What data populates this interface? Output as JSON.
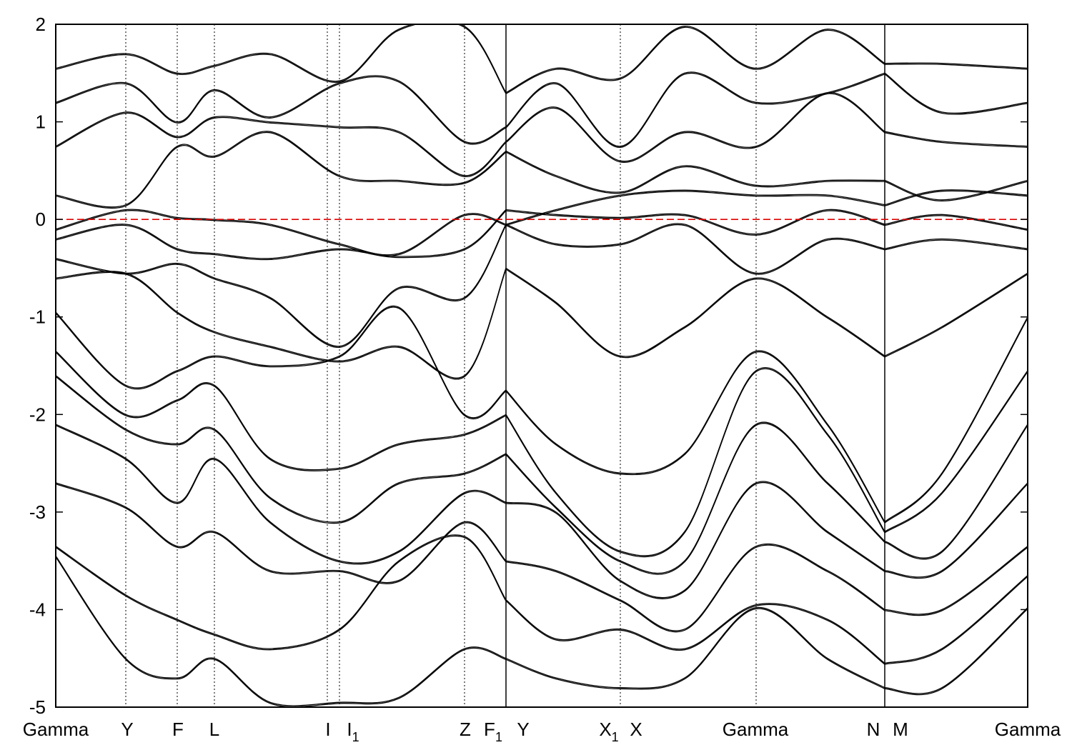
{
  "chart_data": {
    "type": "line",
    "title": "",
    "xlabel": "",
    "ylabel": "",
    "ylim": [
      -5,
      2
    ],
    "y_ticks": [
      -5,
      -4,
      -3,
      -2,
      -1,
      0,
      1,
      2
    ],
    "y_tick_labels": [
      "-5",
      "-4",
      "-3",
      "-2",
      "-1",
      "0",
      "1",
      "2"
    ],
    "fermi_level": 0,
    "fermi_line_color": "#e00000",
    "line_color": "#000000",
    "grid": false,
    "kpath_positions": [
      0,
      98,
      170,
      222,
      380,
      397,
      572,
      630,
      790,
      980,
      1160,
      1360
    ],
    "high_symmetry_points": [
      {
        "label": "Gamma",
        "x": 0
      },
      {
        "label": "Y",
        "x": 98
      },
      {
        "label": "F",
        "x": 170
      },
      {
        "label": "L",
        "x": 222
      },
      {
        "label": "I",
        "x": 380
      },
      {
        "label": "I",
        "sub": "1",
        "x": 397
      },
      {
        "label": "Z",
        "x": 572
      },
      {
        "label": "F",
        "sub": "1",
        "x": 602
      },
      {
        "label": "Y",
        "x": 630
      },
      {
        "label": "X",
        "sub": "1",
        "x": 760
      },
      {
        "label": "X",
        "x": 790
      },
      {
        "label": "Gamma",
        "x": 980
      },
      {
        "label": "N",
        "x": 1160
      },
      {
        "label": "M",
        "x": 1160
      },
      {
        "label": "Gamma",
        "x": 1360
      }
    ],
    "segment_breaks": [
      630,
      1160
    ],
    "series": [
      {
        "values": [
          1.55,
          1.7,
          1.5,
          1.58,
          1.7,
          1.42,
          1.95,
          1.98,
          1.3,
          1.55,
          1.45,
          1.98,
          1.55,
          1.95,
          1.6,
          1.6,
          1.55
        ]
      },
      {
        "values": [
          1.2,
          1.4,
          1.0,
          1.33,
          1.05,
          1.4,
          1.42,
          0.8,
          0.95,
          1.4,
          0.75,
          1.5,
          1.2,
          1.3,
          1.5,
          1.1,
          1.2
        ]
      },
      {
        "values": [
          0.75,
          1.1,
          0.85,
          1.05,
          1.0,
          0.95,
          0.9,
          0.45,
          0.8,
          1.15,
          0.6,
          0.9,
          0.75,
          1.3,
          0.9,
          0.8,
          0.75
        ]
      },
      {
        "values": [
          0.25,
          0.15,
          0.75,
          0.65,
          0.9,
          0.45,
          0.4,
          0.38,
          0.7,
          0.45,
          0.28,
          0.55,
          0.35,
          0.4,
          0.4,
          0.2,
          0.4
        ]
      },
      {
        "values": [
          -0.1,
          0.1,
          0.02,
          0.0,
          -0.05,
          -0.25,
          -0.35,
          0.05,
          -0.05,
          0.1,
          0.25,
          0.3,
          0.25,
          0.25,
          0.15,
          0.3,
          0.25
        ]
      },
      {
        "values": [
          -0.2,
          -0.05,
          -0.3,
          -0.35,
          -0.4,
          -0.3,
          -0.38,
          -0.3,
          0.1,
          0.05,
          0.02,
          0.05,
          -0.15,
          0.1,
          -0.05,
          0.05,
          -0.1
        ]
      },
      {
        "values": [
          -0.4,
          -0.55,
          -0.45,
          -0.6,
          -0.8,
          -1.3,
          -0.7,
          -0.8,
          -0.05,
          -0.25,
          -0.25,
          -0.05,
          -0.55,
          -0.2,
          -0.3,
          -0.2,
          -0.3
        ]
      },
      {
        "values": [
          -0.6,
          -0.55,
          -0.95,
          -1.15,
          -1.3,
          -1.45,
          -1.3,
          -1.6,
          -0.5,
          -0.85,
          -1.4,
          -1.1,
          -0.6,
          -1.0,
          -1.4,
          -1.1,
          -0.55
        ]
      },
      {
        "values": [
          -0.95,
          -1.7,
          -1.55,
          -1.4,
          -1.5,
          -1.4,
          -0.9,
          -2.0,
          -1.75,
          -2.3,
          -2.6,
          -2.4,
          -1.35,
          -2.1,
          -3.1,
          -2.6,
          -1.0
        ]
      },
      {
        "values": [
          -1.35,
          -2.0,
          -1.85,
          -1.7,
          -2.45,
          -2.55,
          -2.3,
          -2.2,
          -2.0,
          -2.8,
          -3.4,
          -3.2,
          -1.55,
          -2.2,
          -3.2,
          -2.8,
          -1.55
        ]
      },
      {
        "values": [
          -1.6,
          -2.15,
          -2.3,
          -2.15,
          -2.85,
          -3.1,
          -2.7,
          -2.6,
          -2.4,
          -2.95,
          -3.5,
          -3.5,
          -2.1,
          -2.7,
          -3.3,
          -3.4,
          -2.1
        ]
      },
      {
        "values": [
          -2.1,
          -2.45,
          -2.9,
          -2.45,
          -3.1,
          -3.5,
          -3.4,
          -2.8,
          -2.9,
          -3.0,
          -3.7,
          -3.8,
          -2.7,
          -3.2,
          -3.6,
          -3.6,
          -2.7
        ]
      },
      {
        "values": [
          -2.7,
          -2.95,
          -3.35,
          -3.2,
          -3.6,
          -3.6,
          -3.7,
          -3.1,
          -3.5,
          -3.6,
          -3.9,
          -4.2,
          -3.35,
          -3.6,
          -4.0,
          -4.0,
          -3.35
        ]
      },
      {
        "values": [
          -3.35,
          -3.85,
          -4.1,
          -4.25,
          -4.4,
          -4.2,
          -3.5,
          -3.25,
          -3.9,
          -4.3,
          -4.2,
          -4.4,
          -3.95,
          -4.1,
          -4.55,
          -4.4,
          -3.65
        ]
      },
      {
        "values": [
          -3.45,
          -4.5,
          -4.7,
          -4.5,
          -4.95,
          -4.95,
          -4.9,
          -4.4,
          -4.5,
          -4.7,
          -4.8,
          -4.7,
          -3.98,
          -4.5,
          -4.8,
          -4.8,
          -3.98
        ]
      }
    ],
    "series_x": [
      0,
      98,
      170,
      222,
      300,
      397,
      480,
      572,
      630,
      700,
      790,
      880,
      980,
      1080,
      1160,
      1240,
      1360
    ]
  }
}
